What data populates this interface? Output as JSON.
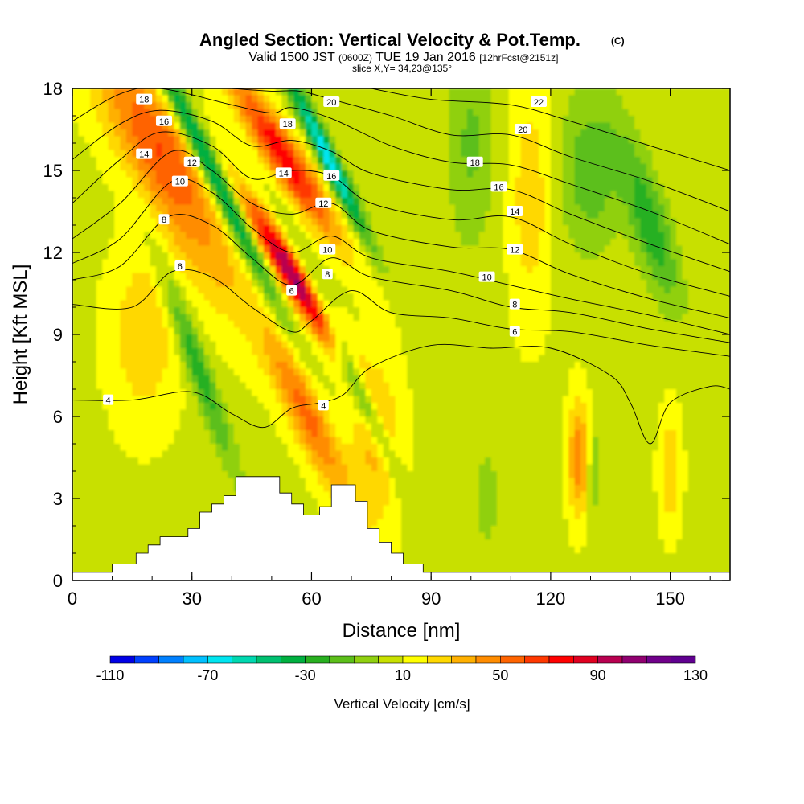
{
  "chart_data": {
    "type": "heatmap",
    "title": "Angled Section: Vertical Velocity & Pot.Temp.",
    "title_unit": "(C)",
    "subtitle_main": "Valid 1500 JST",
    "subtitle_z": "(0600Z)",
    "subtitle_date": "TUE 19 Jan 2016",
    "subtitle_fcst": "[12hrFcst@2151z]",
    "slice_label": "slice X,Y= 34,23@135°",
    "xlabel": "Distance [nm]",
    "ylabel": "Height [Kft MSL]",
    "xlim": [
      0,
      165
    ],
    "ylim": [
      0,
      18
    ],
    "x_ticks": [
      "0",
      "30",
      "60",
      "90",
      "120",
      "150"
    ],
    "y_ticks": [
      "0",
      "3",
      "6",
      "9",
      "12",
      "15",
      "18"
    ],
    "colorbar": {
      "label": "Vertical Velocity [cm/s]",
      "min": -110,
      "max": 130,
      "step": 10,
      "tick_labels": [
        "-110",
        "-70",
        "-30",
        "10",
        "50",
        "90",
        "130"
      ],
      "colors": [
        "#0000e6",
        "#0040ff",
        "#0080ff",
        "#00c0ff",
        "#00e5f0",
        "#00d8b0",
        "#00c070",
        "#00b040",
        "#28b020",
        "#5cbf1a",
        "#90d010",
        "#c8e000",
        "#ffff00",
        "#ffd800",
        "#ffb000",
        "#ff8c00",
        "#ff6400",
        "#ff3800",
        "#ff0000",
        "#e00020",
        "#b80050",
        "#900070",
        "#70008a",
        "#600090"
      ]
    },
    "velocity_field": {
      "background": 8,
      "features": [
        {
          "x": 20,
          "y": 16.5,
          "sx": 10,
          "sy": 3,
          "v": 38,
          "tilt": 0.6
        },
        {
          "x": 30,
          "y": 13,
          "sx": 9,
          "sy": 4,
          "v": 28,
          "tilt": 0.6
        },
        {
          "x": 18,
          "y": 9,
          "sx": 8,
          "sy": 3,
          "v": 22,
          "tilt": 0
        },
        {
          "x": 35,
          "y": 15,
          "sx": 3,
          "sy": 5,
          "v": -68,
          "tilt": 0.55
        },
        {
          "x": 31,
          "y": 8,
          "sx": 3,
          "sy": 4,
          "v": -35,
          "tilt": 0.4
        },
        {
          "x": 56,
          "y": 11,
          "sx": 4,
          "sy": 3,
          "v": 95,
          "tilt": 0.7
        },
        {
          "x": 53,
          "y": 15.5,
          "sx": 5,
          "sy": 3,
          "v": 70,
          "tilt": 0.7
        },
        {
          "x": 59,
          "y": 6,
          "sx": 5,
          "sy": 3,
          "v": 45,
          "tilt": 0.5
        },
        {
          "x": 64,
          "y": 15.5,
          "sx": 2.5,
          "sy": 3,
          "v": -75,
          "tilt": 0.55
        },
        {
          "x": 69,
          "y": 8,
          "sx": 2.5,
          "sy": 4,
          "v": -45,
          "tilt": 0.5
        },
        {
          "x": 76,
          "y": 5,
          "sx": 6,
          "sy": 3,
          "v": 25,
          "tilt": 0
        },
        {
          "x": 100,
          "y": 16,
          "sx": 6,
          "sy": 4,
          "v": -20,
          "tilt": 0
        },
        {
          "x": 115,
          "y": 14,
          "sx": 5,
          "sy": 4,
          "v": 20,
          "tilt": 0
        },
        {
          "x": 130,
          "y": 15,
          "sx": 8,
          "sy": 3,
          "v": -25,
          "tilt": 0
        },
        {
          "x": 145,
          "y": 13,
          "sx": 5,
          "sy": 3,
          "v": -35,
          "tilt": 0.3
        },
        {
          "x": 127,
          "y": 4.5,
          "sx": 2.5,
          "sy": 2,
          "v": 40,
          "tilt": 0
        },
        {
          "x": 131,
          "y": 4,
          "sx": 1.5,
          "sy": 1.5,
          "v": -20,
          "tilt": 0
        },
        {
          "x": 150,
          "y": 4,
          "sx": 2.5,
          "sy": 2,
          "v": 22,
          "tilt": 0
        },
        {
          "x": 104,
          "y": 3,
          "sx": 5,
          "sy": 3,
          "v": -10,
          "tilt": 0
        }
      ]
    },
    "terrain": [
      [
        0,
        0.3
      ],
      [
        10,
        0.3
      ],
      [
        10,
        0.6
      ],
      [
        16,
        0.6
      ],
      [
        16,
        1.0
      ],
      [
        19,
        1.0
      ],
      [
        19,
        1.3
      ],
      [
        22,
        1.3
      ],
      [
        22,
        1.6
      ],
      [
        29,
        1.6
      ],
      [
        29,
        1.9
      ],
      [
        32,
        1.9
      ],
      [
        32,
        2.5
      ],
      [
        35,
        2.5
      ],
      [
        35,
        2.8
      ],
      [
        38,
        2.8
      ],
      [
        38,
        3.1
      ],
      [
        41,
        3.1
      ],
      [
        41,
        3.8
      ],
      [
        52,
        3.8
      ],
      [
        52,
        3.2
      ],
      [
        55,
        3.2
      ],
      [
        55,
        2.8
      ],
      [
        58,
        2.8
      ],
      [
        58,
        2.4
      ],
      [
        62,
        2.4
      ],
      [
        62,
        2.7
      ],
      [
        65,
        2.7
      ],
      [
        65,
        3.5
      ],
      [
        71,
        3.5
      ],
      [
        71,
        2.9
      ],
      [
        74,
        2.9
      ],
      [
        74,
        1.9
      ],
      [
        77,
        1.9
      ],
      [
        77,
        1.4
      ],
      [
        80,
        1.4
      ],
      [
        80,
        1.0
      ],
      [
        83,
        1.0
      ],
      [
        83,
        0.6
      ],
      [
        88,
        0.6
      ],
      [
        88,
        0.3
      ],
      [
        165,
        0.3
      ]
    ],
    "isotherms": [
      {
        "label": "4",
        "points": [
          [
            0,
            6.6
          ],
          [
            15,
            6.6
          ],
          [
            30,
            6.9
          ],
          [
            40,
            6.1
          ],
          [
            48,
            5.6
          ],
          [
            55,
            6.3
          ],
          [
            62,
            6.5
          ],
          [
            68,
            6.8
          ],
          [
            75,
            7.8
          ],
          [
            90,
            8.6
          ],
          [
            105,
            8.5
          ],
          [
            120,
            8.5
          ],
          [
            135,
            7.5
          ],
          [
            140,
            6.5
          ],
          [
            145,
            5.0
          ],
          [
            150,
            6.5
          ],
          [
            160,
            7.1
          ],
          [
            165,
            7.0
          ]
        ],
        "lx": 9,
        "ly": 6.6
      },
      {
        "label": "6",
        "points": [
          [
            0,
            10.1
          ],
          [
            15,
            10.0
          ],
          [
            25,
            11.3
          ],
          [
            35,
            11.1
          ],
          [
            45,
            10.0
          ],
          [
            55,
            9.1
          ],
          [
            60,
            9.5
          ],
          [
            70,
            10.6
          ],
          [
            80,
            9.8
          ],
          [
            95,
            9.6
          ],
          [
            110,
            9.2
          ],
          [
            125,
            9.1
          ],
          [
            145,
            8.6
          ],
          [
            165,
            8.2
          ]
        ],
        "lx": 27,
        "ly": 11.5
      },
      {
        "label": "8",
        "points": [
          [
            0,
            11.0
          ],
          [
            12,
            11.5
          ],
          [
            24,
            13.3
          ],
          [
            35,
            13.0
          ],
          [
            45,
            11.8
          ],
          [
            55,
            10.8
          ],
          [
            65,
            11.8
          ],
          [
            75,
            11.1
          ],
          [
            95,
            10.6
          ],
          [
            110,
            10.0
          ],
          [
            125,
            9.8
          ],
          [
            145,
            9.2
          ],
          [
            165,
            8.7
          ]
        ],
        "lx": 23,
        "ly": 13.2
      },
      {
        "label": "10",
        "points": [
          [
            0,
            11.6
          ],
          [
            12,
            12.5
          ],
          [
            25,
            14.6
          ],
          [
            35,
            14.2
          ],
          [
            45,
            12.9
          ],
          [
            55,
            12.0
          ],
          [
            65,
            12.6
          ],
          [
            75,
            11.8
          ],
          [
            95,
            11.3
          ],
          [
            110,
            10.8
          ],
          [
            125,
            10.3
          ],
          [
            145,
            9.7
          ],
          [
            165,
            9.0
          ]
        ],
        "lx": 27,
        "ly": 14.6
      },
      {
        "label": "12",
        "points": [
          [
            0,
            12.5
          ],
          [
            12,
            13.8
          ],
          [
            25,
            15.7
          ],
          [
            35,
            15.0
          ],
          [
            45,
            13.8
          ],
          [
            55,
            13.4
          ],
          [
            65,
            13.8
          ],
          [
            75,
            12.8
          ],
          [
            95,
            12.2
          ],
          [
            110,
            12.1
          ],
          [
            125,
            11.2
          ],
          [
            145,
            10.3
          ],
          [
            165,
            9.6
          ]
        ],
        "lx": 30,
        "ly": 15.3
      },
      {
        "label": "14",
        "points": [
          [
            0,
            13.8
          ],
          [
            12,
            15.4
          ],
          [
            22,
            16.4
          ],
          [
            35,
            15.9
          ],
          [
            45,
            14.7
          ],
          [
            55,
            15.0
          ],
          [
            65,
            14.8
          ],
          [
            75,
            13.8
          ],
          [
            95,
            13.2
          ],
          [
            110,
            13.3
          ],
          [
            125,
            12.3
          ],
          [
            145,
            11.2
          ],
          [
            165,
            10.4
          ]
        ],
        "lx": 18,
        "ly": 15.6
      },
      {
        "label": "16",
        "points": [
          [
            0,
            15.4
          ],
          [
            12,
            16.7
          ],
          [
            22,
            17.2
          ],
          [
            35,
            16.8
          ],
          [
            45,
            15.9
          ],
          [
            55,
            16.1
          ],
          [
            65,
            15.7
          ],
          [
            75,
            14.9
          ],
          [
            95,
            14.3
          ],
          [
            110,
            14.3
          ],
          [
            125,
            13.4
          ],
          [
            145,
            12.3
          ],
          [
            165,
            11.3
          ]
        ],
        "lx": 23,
        "ly": 16.8
      },
      {
        "label": "18",
        "points": [
          [
            0,
            16.8
          ],
          [
            12,
            17.8
          ],
          [
            22,
            18
          ],
          [
            40,
            17.4
          ],
          [
            50,
            17.1
          ],
          [
            55,
            17.3
          ],
          [
            65,
            16.9
          ],
          [
            80,
            15.9
          ],
          [
            95,
            15.3
          ],
          [
            110,
            15.2
          ],
          [
            125,
            14.5
          ],
          [
            145,
            13.5
          ],
          [
            165,
            12.3
          ]
        ],
        "lx": 18,
        "ly": 17.6
      },
      {
        "label": "20",
        "points": [
          [
            40,
            18
          ],
          [
            50,
            17.9
          ],
          [
            57,
            17.9
          ],
          [
            65,
            17.6
          ],
          [
            80,
            17.0
          ],
          [
            95,
            16.3
          ],
          [
            110,
            16.3
          ],
          [
            125,
            15.5
          ],
          [
            145,
            14.6
          ],
          [
            165,
            13.5
          ]
        ],
        "lx": 65,
        "ly": 17.5
      },
      {
        "label": "22",
        "points": [
          [
            75,
            18
          ],
          [
            90,
            17.6
          ],
          [
            110,
            17.4
          ],
          [
            125,
            16.8
          ],
          [
            145,
            15.9
          ],
          [
            165,
            15.0
          ]
        ],
        "lx": 117,
        "ly": 17.5
      }
    ],
    "extra_labels": [
      {
        "label": "20",
        "x": 113,
        "y": 16.5
      },
      {
        "label": "18",
        "x": 54,
        "y": 16.7
      },
      {
        "label": "18",
        "x": 101,
        "y": 15.3
      },
      {
        "label": "16",
        "x": 65,
        "y": 14.8
      },
      {
        "label": "16",
        "x": 107,
        "y": 14.4
      },
      {
        "label": "14",
        "x": 53,
        "y": 14.9
      },
      {
        "label": "14",
        "x": 111,
        "y": 13.5
      },
      {
        "label": "12",
        "x": 63,
        "y": 13.8
      },
      {
        "label": "12",
        "x": 111,
        "y": 12.1
      },
      {
        "label": "10",
        "x": 64,
        "y": 12.1
      },
      {
        "label": "10",
        "x": 104,
        "y": 11.1
      },
      {
        "label": "8",
        "x": 64,
        "y": 11.2
      },
      {
        "label": "8",
        "x": 111,
        "y": 10.1
      },
      {
        "label": "6",
        "x": 55,
        "y": 10.6
      },
      {
        "label": "6",
        "x": 111,
        "y": 9.1
      },
      {
        "label": "4",
        "x": 63,
        "y": 6.4
      }
    ]
  }
}
